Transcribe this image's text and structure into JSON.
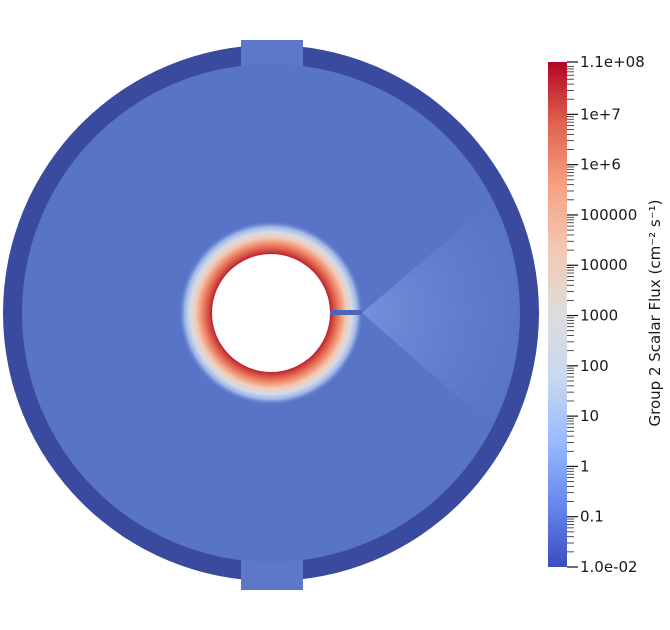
{
  "chart_data": {
    "type": "heatmap",
    "title": "",
    "colorbar": {
      "title": "Group 2 Scalar Flux (cm⁻² s⁻¹)",
      "scale": "log",
      "range": [
        0.01,
        110000000
      ],
      "colormap": "Cool to Warm",
      "colors": [
        "#3b4cc0",
        "#6788ee",
        "#9abbff",
        "#c9d7f0",
        "#dddddd",
        "#f2c9b4",
        "#f6a385",
        "#e0654f",
        "#b40426"
      ],
      "major_ticks": [
        {
          "value": 110000000,
          "label": "1.1e+08"
        },
        {
          "value": 10000000,
          "label": "1e+7"
        },
        {
          "value": 1000000,
          "label": "1e+6"
        },
        {
          "value": 100000,
          "label": "100000"
        },
        {
          "value": 10000,
          "label": "10000"
        },
        {
          "value": 1000,
          "label": "1000"
        },
        {
          "value": 100,
          "label": "100"
        },
        {
          "value": 10,
          "label": "10"
        },
        {
          "value": 1,
          "label": "1"
        },
        {
          "value": 0.1,
          "label": "0.1"
        },
        {
          "value": 0.01,
          "label": "1.0e-02"
        }
      ]
    },
    "regions": [
      {
        "name": "outer shield ring",
        "flux": 0.015
      },
      {
        "name": "moderator",
        "flux": 0.1
      },
      {
        "name": "gradient halo",
        "flux_range": [
          0.1,
          110000000
        ]
      },
      {
        "name": "inner cavity",
        "flux": null
      }
    ]
  }
}
